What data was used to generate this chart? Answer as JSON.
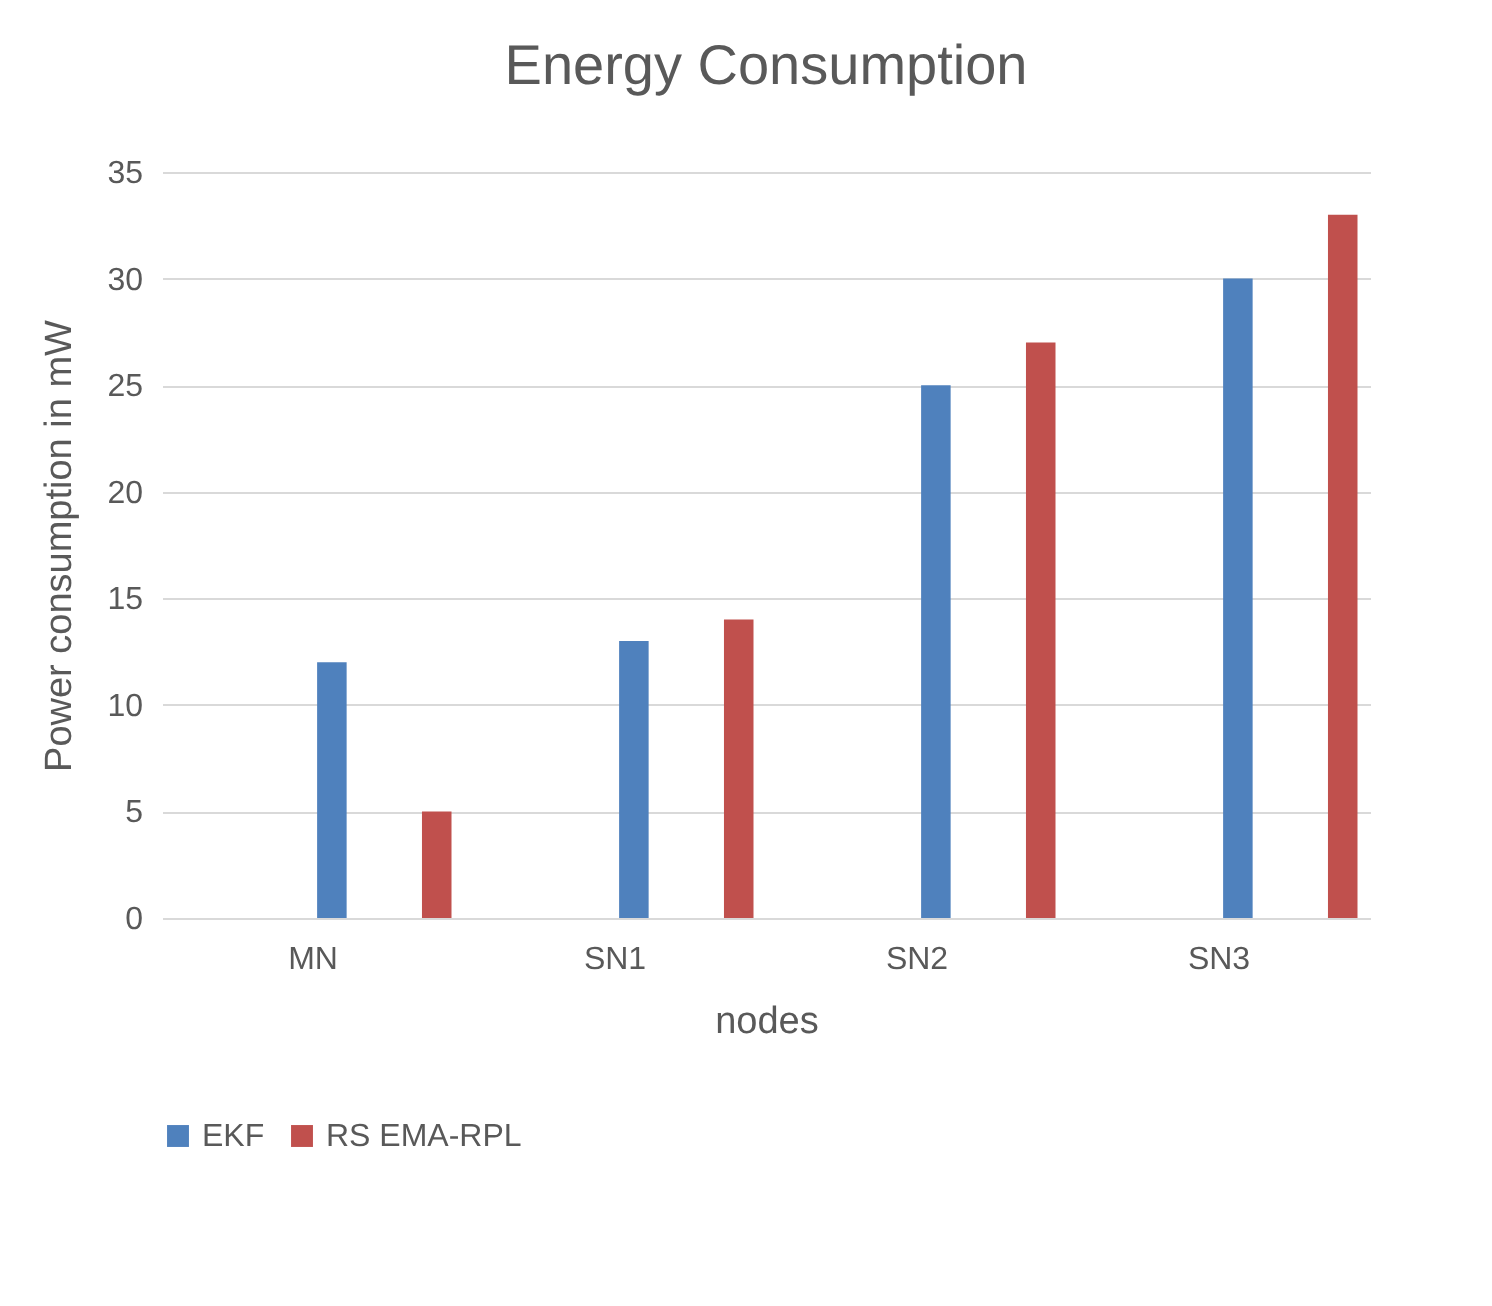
{
  "chart_data": {
    "type": "bar",
    "title": "Energy Consumption",
    "xlabel": "nodes",
    "ylabel": "Power consumption in mW",
    "categories": [
      "MN",
      "SN1",
      "SN2",
      "SN3"
    ],
    "series": [
      {
        "name": "EKF",
        "color": "#4f81bd",
        "values": [
          12,
          13,
          25,
          30
        ]
      },
      {
        "name": "RS EMA-RPL",
        "color": "#c0504d",
        "values": [
          5,
          14,
          27,
          33
        ]
      }
    ],
    "ylim": [
      0,
      35
    ],
    "yticks": [
      0,
      5,
      10,
      15,
      20,
      25,
      30,
      35
    ],
    "grid": "y",
    "legend": "bottom"
  }
}
